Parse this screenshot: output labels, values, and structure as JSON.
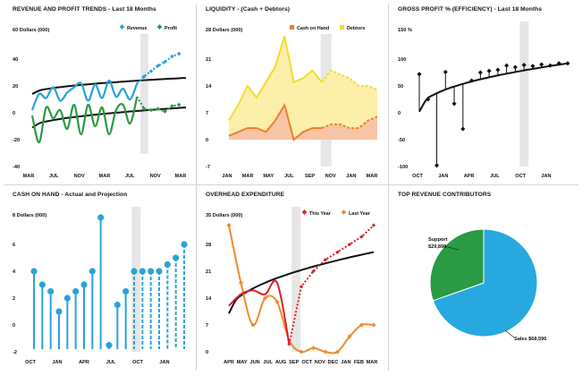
{
  "colors": {
    "revenue": "#27a2d9",
    "profit": "#2a9a45",
    "trend": "#111111",
    "projection_band": "#e6e6e6",
    "cash_fill": "#f6c5a6",
    "cash_line": "#ef7f2d",
    "debtors_fill": "#fbefaa",
    "debtors_line": "#f2dd2a",
    "gross": "#111111",
    "cash_points": "#2aa3d8",
    "this_year": "#d92027",
    "last_year": "#ef8a2b",
    "pie_support": "#2a9a45",
    "pie_sales": "#27a9df"
  },
  "chart_data": [
    {
      "id": "revenue-profit",
      "type": "line",
      "title": "REVENUE AND PROFIT TRENDS - Last 18 Months",
      "ylabel": "60 Dollars (000)",
      "ylim": [
        -40,
        60
      ],
      "yticks": [
        "60",
        "40",
        "20",
        "0",
        "-20",
        "-40"
      ],
      "xticks": [
        "MAR",
        "JUL",
        "NOV",
        "MAR",
        "JUL",
        "NOV",
        "MAR"
      ],
      "legend": [
        "Revenue",
        "Profit"
      ],
      "projection_start": 15.5,
      "projection_end": 16.6,
      "series": [
        {
          "name": "Revenue",
          "values": [
            2,
            14,
            11,
            19,
            9,
            15,
            19,
            22,
            9,
            21,
            11,
            24,
            12,
            18,
            10,
            22
          ],
          "projection": [
            22,
            27,
            31,
            35,
            38,
            42,
            44
          ]
        },
        {
          "name": "Profit",
          "values": [
            -2,
            -22,
            4,
            -4,
            2,
            -12,
            6,
            -16,
            6,
            -10,
            4,
            -16,
            2,
            6,
            -8,
            12
          ],
          "projection": [
            12,
            3,
            2,
            3,
            1,
            5,
            6
          ]
        }
      ],
      "trend_revenue": [
        14,
        26
      ],
      "trend_profit": [
        -11,
        4
      ]
    },
    {
      "id": "liquidity",
      "type": "area",
      "title": "LIQUIDITY - (Cash + Debtors)",
      "ylabel": "28 Dollars (000)",
      "ylim": [
        -7,
        28
      ],
      "yticks": [
        "28",
        "21",
        "14",
        "7",
        "0",
        "-7"
      ],
      "xticks": [
        "JAN",
        "MAR",
        "MAY",
        "JUL",
        "SEP",
        "NOV",
        "JAN",
        "MAR"
      ],
      "legend": [
        "Cash on Hand",
        "Debtors"
      ],
      "series": [
        {
          "name": "Cash on Hand",
          "values": [
            1,
            2,
            3,
            3,
            2,
            5,
            9,
            0,
            2,
            3,
            3
          ],
          "projection": [
            3,
            4,
            4,
            3,
            3,
            5,
            6
          ]
        },
        {
          "name": "Debtors",
          "values": [
            5,
            9,
            14,
            11,
            15,
            19,
            27,
            15,
            16,
            18,
            15
          ],
          "projection": [
            15,
            18,
            17,
            16,
            14,
            14,
            13
          ]
        }
      ]
    },
    {
      "id": "gross-profit",
      "type": "scatter",
      "title": "GROSS PROFIT % (EFFICIENCY) - Last 18 Months",
      "ylabel": "150 %",
      "ylim": [
        -100,
        150
      ],
      "yticks": [
        "150",
        "100",
        "50",
        "0",
        "-50",
        "-100"
      ],
      "xticks": [
        "OCT",
        "JAN",
        "APR",
        "JUL",
        "OCT",
        "JAN"
      ],
      "values": [
        72,
        25,
        -98,
        76,
        17,
        -30,
        60,
        75,
        78,
        80,
        88,
        85,
        89,
        87,
        90,
        88,
        92,
        92
      ]
    },
    {
      "id": "cash-on-hand",
      "type": "scatter",
      "title": "CASH ON HAND - Actual and Projection",
      "ylabel": "8 Dollars (000)",
      "ylim": [
        -2,
        8
      ],
      "yticks": [
        "8",
        "6",
        "4",
        "2",
        "0",
        "-2"
      ],
      "xticks": [
        "OCT",
        "JAN",
        "APR",
        "JUL",
        "OCT",
        "JAN"
      ],
      "values": [
        4,
        3,
        2.5,
        1,
        2,
        2.5,
        3,
        4,
        8,
        -1.5,
        1.5,
        2.5
      ],
      "projection": [
        4,
        4,
        4,
        4,
        4.5,
        5,
        6
      ]
    },
    {
      "id": "overhead",
      "type": "line",
      "title": "OVERHEAD EXPENDITURE",
      "ylabel": "35 Dollars (000)",
      "ylim": [
        0,
        35
      ],
      "yticks": [
        "35",
        "28",
        "21",
        "14",
        "7",
        "0"
      ],
      "xticks": [
        "APR",
        "MAY",
        "JUN",
        "JUL",
        "AUG",
        "SEP",
        "OCT",
        "NOV",
        "DEC",
        "JAN",
        "FEB",
        "MAR"
      ],
      "legend": [
        "This Year",
        "Last Year"
      ],
      "series": [
        {
          "name": "This Year",
          "values": [
            12,
            15,
            16,
            15,
            18,
            2,
            17,
            21,
            24,
            26,
            28,
            30,
            33
          ]
        },
        {
          "name": "Last Year",
          "values": [
            33,
            18,
            7,
            14,
            13,
            3,
            0,
            1,
            0,
            0,
            4,
            7,
            7
          ]
        }
      ],
      "trend": [
        10,
        26
      ]
    },
    {
      "id": "top-revenue",
      "type": "pie",
      "title": "TOP REVENUE CONTRIBUTORS",
      "slices": [
        {
          "label": "Support",
          "value_text": "$29,898",
          "value": 29898
        },
        {
          "label": "Sales",
          "value_text": "$68,596",
          "value": 68596
        }
      ]
    }
  ]
}
